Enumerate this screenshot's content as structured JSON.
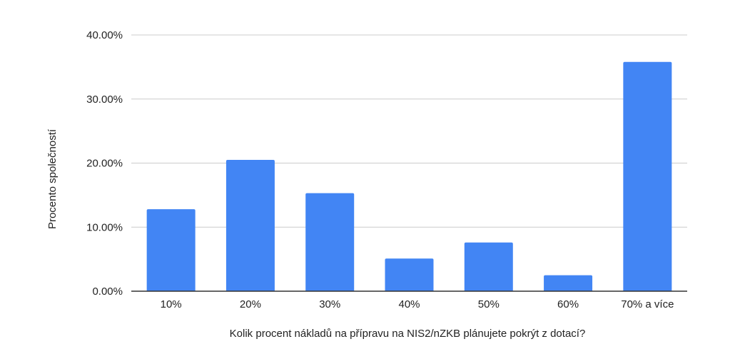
{
  "chart_data": {
    "type": "bar",
    "title": "",
    "xlabel": "Kolik procent nákladů na přípravu na NIS2/nZKB plánujete pokrýt z dotací?",
    "ylabel": "Procento společností",
    "categories": [
      "10%",
      "20%",
      "30%",
      "40%",
      "50%",
      "60%",
      "70% a více"
    ],
    "values": [
      12.8,
      20.5,
      15.3,
      5.1,
      7.6,
      2.5,
      35.8
    ],
    "ylim": [
      0,
      40
    ],
    "yticks": [
      0,
      10,
      20,
      30,
      40
    ],
    "ytick_labels": [
      "0.00%",
      "10.00%",
      "20.00%",
      "30.00%",
      "40.00%"
    ],
    "grid": true,
    "legend": "none",
    "bar_color": "#4285F4",
    "gridline_color": "#cccccc",
    "axis_color": "#333333"
  }
}
